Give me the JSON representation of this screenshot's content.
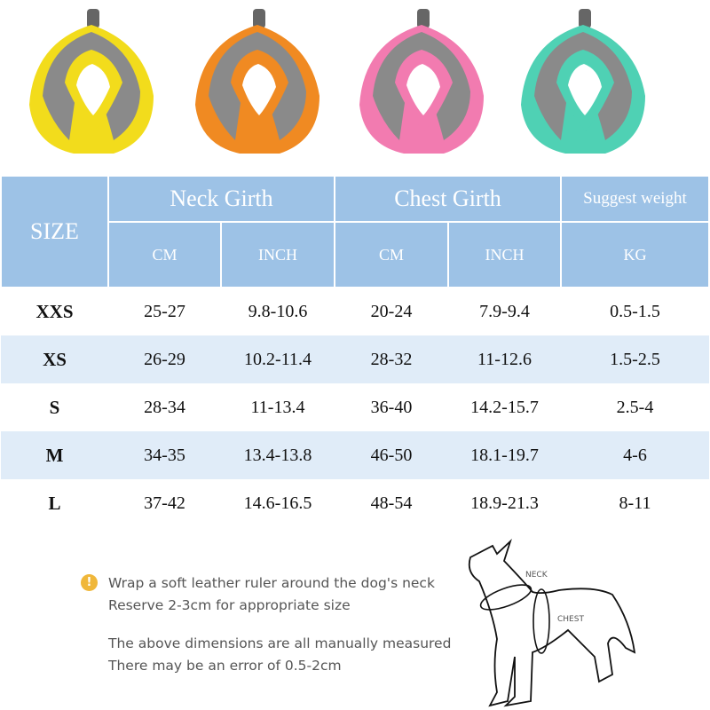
{
  "harness_colors": [
    "#f2dc1c",
    "#f08a22",
    "#f27bb0",
    "#4fd1b4"
  ],
  "table": {
    "size_label": "SIZE",
    "groups": [
      "Neck Girth",
      "Chest Girth",
      "Suggest weight"
    ],
    "units": [
      "CM",
      "INCH",
      "CM",
      "INCH",
      "KG"
    ],
    "rows": [
      [
        "XXS",
        "25-27",
        "9.8-10.6",
        "20-24",
        "7.9-9.4",
        "0.5-1.5"
      ],
      [
        "XS",
        "26-29",
        "10.2-11.4",
        "28-32",
        "11-12.6",
        "1.5-2.5"
      ],
      [
        "S",
        "28-34",
        "11-13.4",
        "36-40",
        "14.2-15.7",
        "2.5-4"
      ],
      [
        "M",
        "34-35",
        "13.4-13.8",
        "46-50",
        "18.1-19.7",
        "4-6"
      ],
      [
        "L",
        "37-42",
        "14.6-16.5",
        "48-54",
        "18.9-21.3",
        "8-11"
      ]
    ]
  },
  "notes": {
    "icon": "exclamation-icon",
    "line1": "Wrap a soft leather ruler around the dog's neck",
    "line2": "Reserve 2-3cm for appropriate size",
    "line3": "The above dimensions are all manually measured",
    "line4": "There may be an error of 0.5-2cm"
  },
  "diagram": {
    "neck_label": "NECK",
    "chest_label": "CHEST"
  }
}
